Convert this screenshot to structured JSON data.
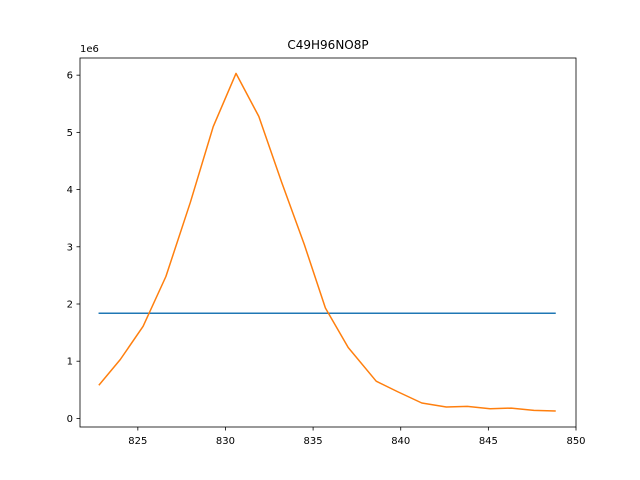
{
  "chart_data": {
    "type": "line",
    "title": "C49H96NO8P",
    "xlabel": "",
    "ylabel": "",
    "y_offset_label": "1e6",
    "xlim": [
      821.7,
      850.0
    ],
    "ylim": [
      -0.15,
      6.3
    ],
    "x_ticks": [
      825,
      830,
      835,
      840,
      845,
      850
    ],
    "x_tick_labels": [
      "825",
      "830",
      "835",
      "840",
      "845",
      "850"
    ],
    "y_ticks": [
      0,
      1,
      2,
      3,
      4,
      5,
      6
    ],
    "y_tick_labels": [
      "0",
      "1",
      "2",
      "3",
      "4",
      "5",
      "6"
    ],
    "grid": false,
    "legend": "none",
    "series": [
      {
        "color": "#1f77b4",
        "x": [
          822.8,
          848.8
        ],
        "y": [
          1.84,
          1.84
        ]
      },
      {
        "color": "#ff7f0e",
        "x": [
          822.8,
          824.0,
          825.3,
          826.6,
          828.0,
          829.3,
          830.6,
          831.9,
          833.2,
          834.5,
          835.7,
          837.0,
          838.6,
          839.8,
          841.2,
          842.6,
          843.8,
          845.1,
          846.3,
          847.6,
          848.8
        ],
        "y": [
          0.59,
          1.03,
          1.61,
          2.48,
          3.78,
          5.1,
          6.03,
          5.28,
          4.13,
          3.04,
          1.93,
          1.24,
          0.65,
          0.47,
          0.27,
          0.2,
          0.21,
          0.17,
          0.18,
          0.14,
          0.13
        ]
      }
    ]
  }
}
